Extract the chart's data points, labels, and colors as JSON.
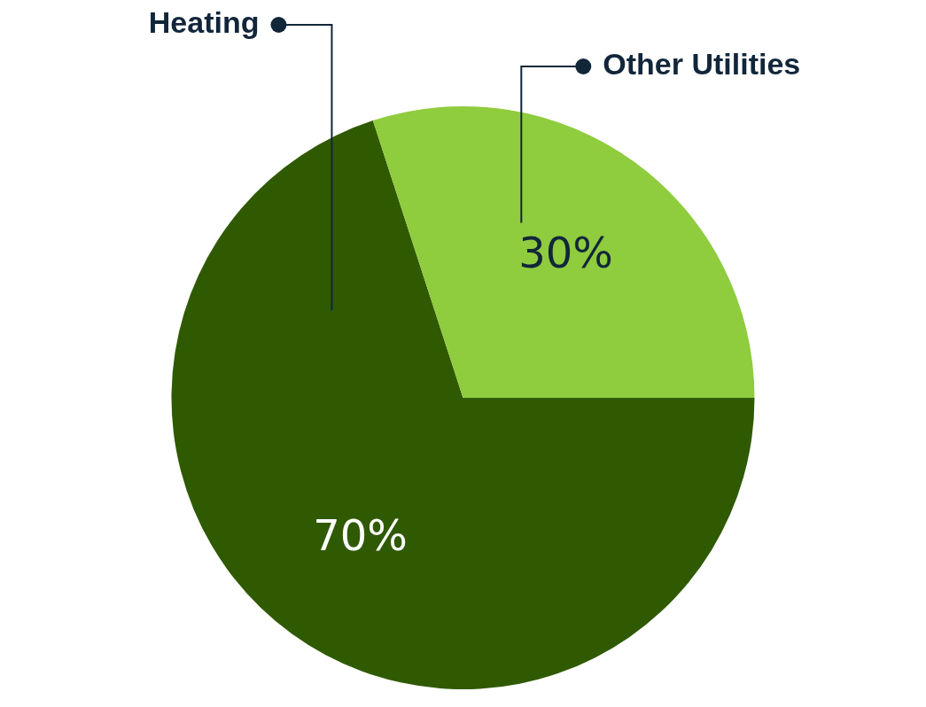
{
  "chart_data": {
    "type": "pie",
    "categories": [
      "Heating",
      "Other Utilities"
    ],
    "values": [
      70,
      30
    ],
    "colors": [
      "#305a02",
      "#8fcc3e"
    ],
    "value_labels": [
      "70%",
      "30%"
    ]
  }
}
